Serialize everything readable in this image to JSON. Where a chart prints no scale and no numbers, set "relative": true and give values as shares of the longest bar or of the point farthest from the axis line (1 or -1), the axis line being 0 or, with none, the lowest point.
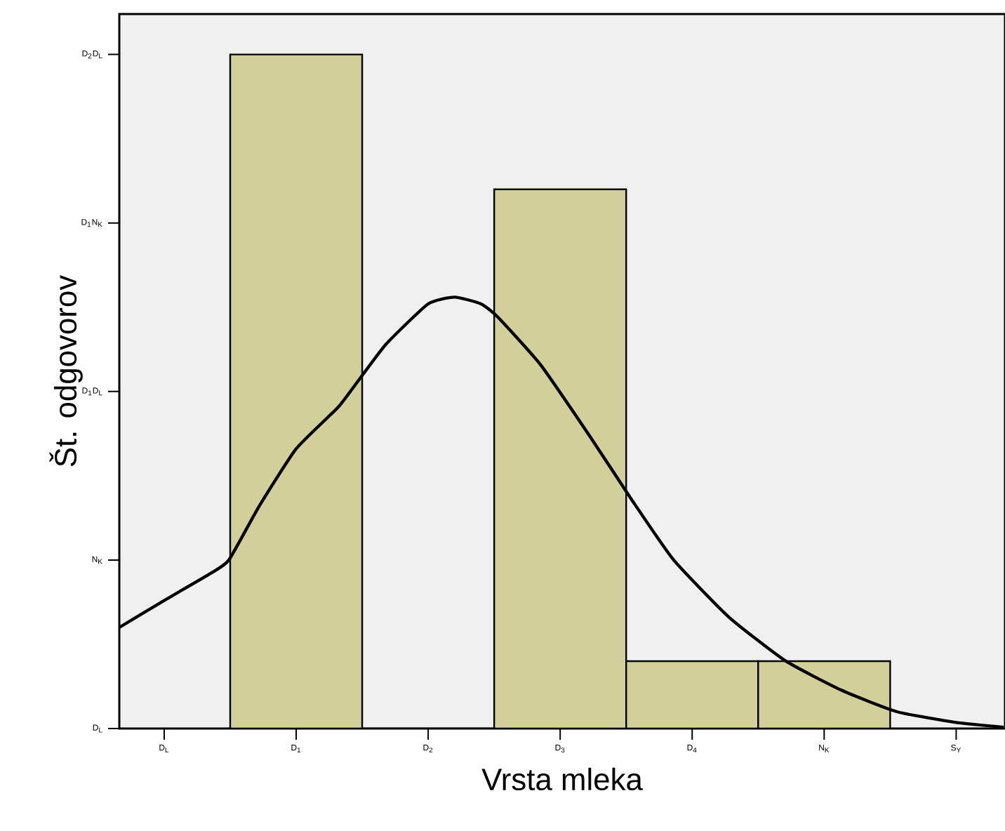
{
  "chart_data": {
    "type": "histogram",
    "xlabel": "Vrsta mleka",
    "ylabel": "Št. odgovorov",
    "relative": true,
    "bins": [
      0.5,
      1.5,
      2.5,
      3.5,
      4.5,
      5.5
    ],
    "values": [
      1,
      0,
      0.8,
      0.1,
      0.1
    ],
    "color": "#d3cf9a",
    "series": [
      {
        "type": "line",
        "color": "#000000",
        "x": [
          -0.34,
          0,
          0.35,
          0.49,
          0.72,
          1.0,
          1.31,
          1.41,
          1.68,
          2.0,
          2.2,
          2.4,
          2.53,
          2.85,
          3.22,
          3.54,
          3.86,
          4.28,
          4.71,
          5.13,
          5.55,
          6.0,
          6.36
        ],
        "values": [
          0.15,
          0.19,
          0.23,
          0.25,
          0.33,
          0.415,
          0.475,
          0.5,
          0.57,
          0.63,
          0.64,
          0.63,
          0.61,
          0.54,
          0.435,
          0.34,
          0.25,
          0.165,
          0.1,
          0.057,
          0.025,
          0.009,
          0.002
        ]
      }
    ],
    "xlim": [
      -0.34,
      6.37
    ],
    "xticks": [
      {
        "value": 0,
        "label": "D$_{L}$"
      },
      {
        "value": 1,
        "label": "D$_{1}$"
      },
      {
        "value": 2,
        "label": "D$_{2}$"
      },
      {
        "value": 3,
        "label": "D$_{3}$"
      },
      {
        "value": 4,
        "label": "D$_{4}$"
      },
      {
        "value": 5,
        "label": "N$_{K}$"
      },
      {
        "value": 6,
        "label": "S$_{Y}$"
      }
    ],
    "annotations": [
      "D$_{L}$",
      "N$_{K}$",
      "D$_{1}$D$_{L}$",
      "D$_{1}$N$_{K}$",
      "D$_{2}$D$_{L}$"
    ]
  }
}
